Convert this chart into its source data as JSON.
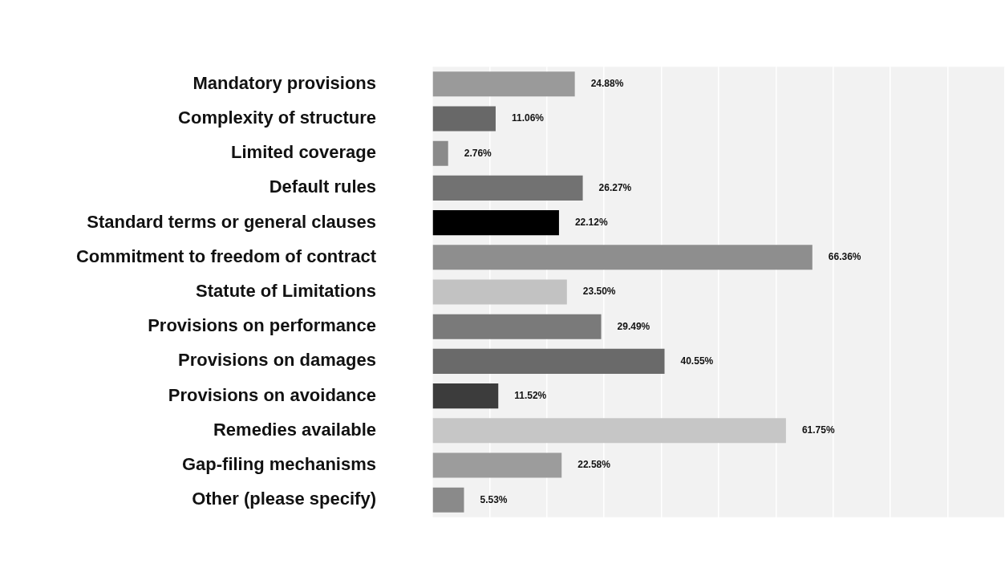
{
  "chart_data": {
    "type": "bar",
    "orientation": "horizontal",
    "categories": [
      "Mandatory provisions",
      "Complexity of structure",
      "Limited coverage",
      "Default rules",
      "Standard terms or general clauses",
      "Commitment to freedom of contract",
      "Statute of Limitations",
      "Provisions on performance",
      "Provisions on damages",
      "Provisions on avoidance",
      "Remedies available",
      "Gap-filing mechanisms",
      "Other (please specify)"
    ],
    "values": [
      24.88,
      11.06,
      2.76,
      26.27,
      22.12,
      66.36,
      23.5,
      29.49,
      40.55,
      11.52,
      61.75,
      22.58,
      5.53
    ],
    "value_labels": [
      "24.88%",
      "11.06%",
      "2.76%",
      "26.27%",
      "22.12%",
      "66.36%",
      "23.50%",
      "29.49%",
      "40.55%",
      "11.52%",
      "61.75%",
      "22.58%",
      "5.53%"
    ],
    "colors": [
      "#9a9a9a",
      "#686868",
      "#8a8a8a",
      "#727272",
      "#000000",
      "#8e8e8e",
      "#c2c2c2",
      "#7a7a7a",
      "#6a6a6a",
      "#3c3c3c",
      "#c6c6c6",
      "#9c9c9c",
      "#8a8a8a"
    ],
    "xlim": [
      0,
      100
    ],
    "xticks": [
      {
        "value": 0,
        "label": null
      },
      {
        "value": 10,
        "label": null
      },
      {
        "value": 20,
        "label": null
      },
      {
        "value": 30,
        "label": null
      },
      {
        "value": 40,
        "label": null
      },
      {
        "value": 50,
        "label": null
      },
      {
        "value": 60,
        "label": null
      },
      {
        "value": 70,
        "label": null
      },
      {
        "value": 80,
        "label": null
      },
      {
        "value": 90,
        "label": null
      },
      {
        "value": 100,
        "label": null
      }
    ],
    "grid": "x",
    "tick_labels": "y"
  }
}
